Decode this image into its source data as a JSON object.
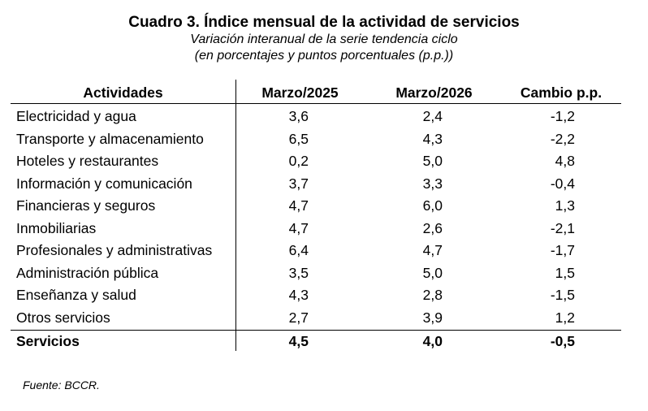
{
  "title": "Cuadro 3. Índice mensual de la actividad de servicios",
  "subtitle_1": "Variación interanual de la serie tendencia ciclo",
  "subtitle_2": "(en porcentajes y puntos porcentuales (p.p.))",
  "table": {
    "headers": [
      "Actividades",
      "Marzo/2025",
      "Marzo/2026",
      "Cambio p.p."
    ],
    "rows": [
      [
        "Electricidad y agua",
        "3,6",
        "2,4",
        "-1,2"
      ],
      [
        "Transporte y almacenamiento",
        "6,5",
        "4,3",
        "-2,2"
      ],
      [
        "Hoteles y restaurantes",
        "0,2",
        "5,0",
        "4,8"
      ],
      [
        "Información y comunicación",
        "3,7",
        "3,3",
        "-0,4"
      ],
      [
        "Financieras y seguros",
        "4,7",
        "6,0",
        "1,3"
      ],
      [
        "Inmobiliarias",
        "4,7",
        "2,6",
        "-2,1"
      ],
      [
        "Profesionales y administrativas",
        "6,4",
        "4,7",
        "-1,7"
      ],
      [
        "Administración pública",
        "3,5",
        "5,0",
        "1,5"
      ],
      [
        "Enseñanza y salud",
        "4,3",
        "2,8",
        "-1,5"
      ],
      [
        "Otros servicios",
        "2,7",
        "3,9",
        "1,2"
      ]
    ],
    "total": [
      "Servicios",
      "4,5",
      "4,0",
      "-0,5"
    ]
  },
  "source": "Fuente: BCCR."
}
